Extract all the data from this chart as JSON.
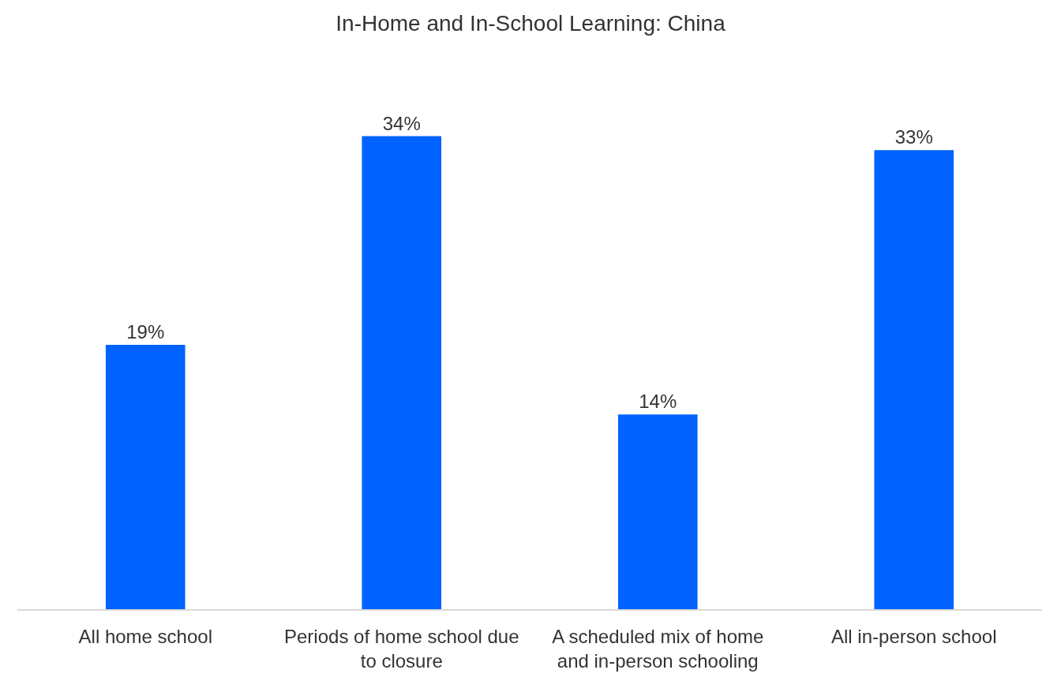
{
  "chart_data": {
    "type": "bar",
    "title": "In-Home and In-School Learning: China",
    "categories": [
      "All home school",
      "Periods of home school due to closure",
      "A scheduled mix of home and in-person schooling",
      "All in-person school"
    ],
    "values": [
      19,
      34,
      14,
      33
    ],
    "value_labels": [
      "19%",
      "34%",
      "14%",
      "33%"
    ],
    "color": "#0062ff",
    "tick_labels": "x"
  }
}
